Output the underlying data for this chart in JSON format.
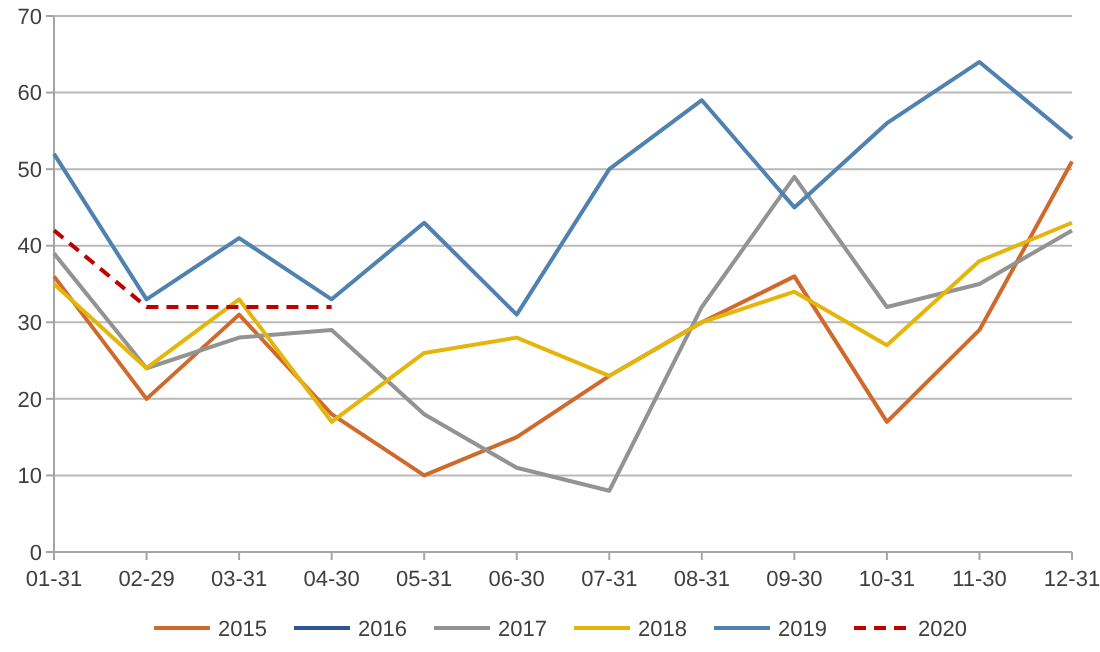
{
  "chart_data": {
    "type": "line",
    "categories": [
      "01-31",
      "02-29",
      "03-31",
      "04-30",
      "05-31",
      "06-30",
      "07-31",
      "08-31",
      "09-30",
      "10-31",
      "11-30",
      "12-31"
    ],
    "series": [
      {
        "name": "2015",
        "color": "#d0692c",
        "values": [
          36,
          20,
          31,
          18,
          10,
          15,
          23,
          30,
          36,
          17,
          29,
          51
        ]
      },
      {
        "name": "2016",
        "color": "#2f5597",
        "values": [
          null,
          null,
          null,
          null,
          null,
          null,
          null,
          null,
          null,
          null,
          null,
          null
        ]
      },
      {
        "name": "2017",
        "color": "#939393",
        "values": [
          39,
          24,
          28,
          29,
          18,
          11,
          8,
          32,
          49,
          32,
          35,
          42
        ]
      },
      {
        "name": "2018",
        "color": "#e5b50c",
        "values": [
          35,
          24,
          33,
          17,
          26,
          28,
          23,
          30,
          34,
          27,
          38,
          43
        ]
      },
      {
        "name": "2019",
        "color": "#4f82b0",
        "values": [
          52,
          33,
          41,
          33,
          43,
          31,
          50,
          59,
          45,
          56,
          64,
          54
        ]
      },
      {
        "name": "2020",
        "color": "#c00000",
        "line_style": "dashed",
        "values": [
          42,
          32,
          32,
          32,
          null,
          null,
          null,
          null,
          null,
          null,
          null,
          null
        ]
      }
    ],
    "ylim": [
      0,
      70
    ],
    "yticks": [
      0,
      10,
      20,
      30,
      40,
      50,
      60,
      70
    ],
    "grid": "y",
    "legend": "bottom",
    "marker": "none",
    "line_style": "solid"
  }
}
